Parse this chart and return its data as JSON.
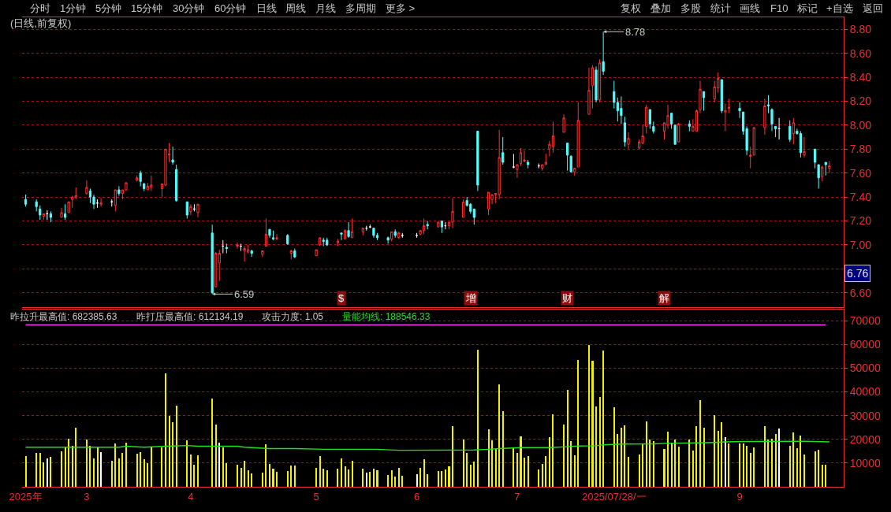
{
  "chart_data": [
    {
      "type": "other",
      "annotations": [
        "分时",
        "1分钟",
        "5分钟",
        "15分钟",
        "30分钟",
        "60分钟",
        "日线",
        "周线",
        "月线",
        "多周期",
        "更多 >"
      ]
    },
    {
      "type": "other",
      "annotations": [
        "复权",
        "叠加",
        "多股",
        "统计",
        "画线",
        "F10",
        "标记",
        "+自选",
        "返回"
      ]
    },
    {
      "type": "candlestick",
      "title": "(日线,前复权)",
      "x": [
        "2025-02-14",
        "2025-02-17",
        "2025-02-18",
        "2025-02-19",
        "2025-02-20",
        "2025-02-21",
        "2025-02-24",
        "2025-02-25",
        "2025-02-26",
        "2025-02-27",
        "2025-02-28",
        "2025-03-03",
        "2025-03-04",
        "2025-03-05",
        "2025-03-06",
        "2025-03-07",
        "2025-03-10",
        "2025-03-11",
        "2025-03-12",
        "2025-03-13",
        "2025-03-14",
        "2025-03-17",
        "2025-03-18",
        "2025-03-19",
        "2025-03-20",
        "2025-03-21",
        "2025-03-24",
        "2025-03-25",
        "2025-03-26",
        "2025-03-27",
        "2025-03-28",
        "2025-03-31",
        "2025-04-01",
        "2025-04-02",
        "2025-04-03",
        "2025-04-07",
        "2025-04-08",
        "2025-04-09",
        "2025-04-10",
        "2025-04-11",
        "2025-04-14",
        "2025-04-15",
        "2025-04-16",
        "2025-04-17",
        "2025-04-18",
        "2025-04-21",
        "2025-04-22",
        "2025-04-23",
        "2025-04-24",
        "2025-04-25",
        "2025-04-28",
        "2025-04-29",
        "2025-04-30",
        "2025-05-06",
        "2025-05-07",
        "2025-05-08",
        "2025-05-09",
        "2025-05-12",
        "2025-05-13",
        "2025-05-14",
        "2025-05-15",
        "2025-05-16",
        "2025-05-19",
        "2025-05-20",
        "2025-05-21",
        "2025-05-22",
        "2025-05-23",
        "2025-05-26",
        "2025-05-27",
        "2025-05-28",
        "2025-05-29",
        "2025-05-30",
        "2025-06-03",
        "2025-06-04",
        "2025-06-05",
        "2025-06-06",
        "2025-06-09",
        "2025-06-10",
        "2025-06-11",
        "2025-06-12",
        "2025-06-13",
        "2025-06-16",
        "2025-06-17",
        "2025-06-18",
        "2025-06-19",
        "2025-06-20",
        "2025-06-23",
        "2025-06-24",
        "2025-06-25",
        "2025-06-26",
        "2025-06-27",
        "2025-06-30",
        "2025-07-01",
        "2025-07-02",
        "2025-07-03",
        "2025-07-04",
        "2025-07-07",
        "2025-07-08",
        "2025-07-09",
        "2025-07-10",
        "2025-07-11",
        "2025-07-14",
        "2025-07-15",
        "2025-07-16",
        "2025-07-17",
        "2025-07-18",
        "2025-07-21",
        "2025-07-22",
        "2025-07-23",
        "2025-07-24",
        "2025-07-25",
        "2025-07-28",
        "2025-07-29",
        "2025-07-30",
        "2025-07-31",
        "2025-08-01",
        "2025-08-04",
        "2025-08-05",
        "2025-08-06",
        "2025-08-07",
        "2025-08-08",
        "2025-08-11",
        "2025-08-12",
        "2025-08-13",
        "2025-08-14",
        "2025-08-15",
        "2025-08-18",
        "2025-08-19",
        "2025-08-20",
        "2025-08-21",
        "2025-08-22",
        "2025-08-25",
        "2025-08-26",
        "2025-08-27",
        "2025-08-28",
        "2025-08-29",
        "2025-09-01",
        "2025-09-02",
        "2025-09-03",
        "2025-09-04",
        "2025-09-05",
        "2025-09-08",
        "2025-09-09",
        "2025-09-10",
        "2025-09-11",
        "2025-09-12",
        "2025-09-15",
        "2025-09-16",
        "2025-09-17",
        "2025-09-18",
        "2025-09-19",
        "2025-09-22",
        "2025-09-23",
        "2025-09-24",
        "2025-09-25",
        "2025-09-26"
      ],
      "ohlc": [
        [
          7.38,
          7.42,
          7.32,
          7.34
        ],
        [
          7.36,
          7.38,
          7.28,
          7.32
        ],
        [
          7.3,
          7.33,
          7.21,
          7.25
        ],
        [
          7.24,
          7.26,
          7.21,
          7.26
        ],
        [
          7.26,
          7.29,
          7.21,
          7.26
        ],
        [
          7.26,
          7.28,
          7.19,
          7.23
        ],
        [
          7.23,
          7.31,
          7.23,
          7.27
        ],
        [
          7.26,
          7.34,
          7.21,
          7.23
        ],
        [
          7.27,
          7.36,
          7.27,
          7.36
        ],
        [
          7.38,
          7.41,
          7.31,
          7.4
        ],
        [
          7.4,
          7.48,
          7.38,
          7.41
        ],
        [
          7.43,
          7.54,
          7.42,
          7.48
        ],
        [
          7.45,
          7.47,
          7.35,
          7.4
        ],
        [
          7.4,
          7.42,
          7.3,
          7.34
        ],
        [
          7.35,
          7.38,
          7.31,
          7.35
        ],
        [
          7.34,
          7.39,
          7.32,
          7.35
        ],
        [
          7.36,
          7.38,
          7.32,
          7.36
        ],
        [
          7.33,
          7.46,
          7.28,
          7.46
        ],
        [
          7.46,
          7.49,
          7.41,
          7.43
        ],
        [
          7.43,
          7.46,
          7.38,
          7.46
        ],
        [
          7.46,
          7.52,
          7.45,
          7.52
        ],
        [
          7.54,
          7.58,
          7.53,
          7.56
        ],
        [
          7.6,
          7.62,
          7.49,
          7.53
        ],
        [
          7.51,
          7.52,
          7.45,
          7.47
        ],
        [
          7.46,
          7.52,
          7.46,
          7.49
        ],
        [
          7.48,
          7.58,
          7.45,
          7.5
        ],
        [
          7.47,
          7.51,
          7.4,
          7.51
        ],
        [
          7.5,
          7.8,
          7.49,
          7.8
        ],
        [
          7.75,
          7.85,
          7.69,
          7.76
        ],
        [
          7.71,
          7.82,
          7.67,
          7.69
        ],
        [
          7.63,
          7.67,
          7.36,
          7.37
        ],
        [
          7.36,
          7.36,
          7.22,
          7.25
        ],
        [
          7.28,
          7.34,
          7.25,
          7.32
        ],
        [
          7.3,
          7.34,
          7.28,
          7.3
        ],
        [
          7.27,
          7.34,
          7.23,
          7.34
        ],
        [
          7.1,
          7.17,
          6.59,
          6.6
        ],
        [
          6.65,
          6.94,
          6.65,
          6.93
        ],
        [
          6.85,
          6.96,
          6.7,
          6.93
        ],
        [
          6.99,
          7.04,
          6.93,
          6.99
        ],
        [
          6.98,
          7.01,
          6.93,
          6.97
        ],
        [
          6.99,
          7.02,
          6.97,
          7.0
        ],
        [
          6.99,
          7.01,
          6.95,
          6.99
        ],
        [
          6.95,
          6.99,
          6.86,
          6.97
        ],
        [
          6.94,
          7.0,
          6.93,
          6.96
        ],
        [
          6.95,
          6.96,
          6.9,
          6.93
        ],
        [
          6.92,
          6.95,
          6.9,
          6.95
        ],
        [
          6.99,
          7.22,
          6.99,
          7.09
        ],
        [
          7.13,
          7.13,
          7.06,
          7.08
        ],
        [
          7.06,
          7.12,
          7.04,
          7.05
        ],
        [
          7.05,
          7.09,
          7.04,
          7.06
        ],
        [
          7.08,
          7.09,
          7.0,
          7.01
        ],
        [
          6.93,
          6.96,
          6.88,
          6.95
        ],
        [
          6.95,
          6.97,
          6.89,
          6.9
        ],
        [
          6.91,
          6.96,
          6.91,
          6.96
        ],
        [
          7.0,
          7.06,
          6.99,
          7.06
        ],
        [
          7.04,
          7.06,
          6.99,
          7.03
        ],
        [
          7.04,
          7.06,
          6.99,
          7.0
        ],
        [
          7.02,
          7.05,
          6.99,
          7.03
        ],
        [
          7.1,
          7.1,
          7.04,
          7.09
        ],
        [
          7.05,
          7.13,
          7.05,
          7.12
        ],
        [
          7.12,
          7.19,
          7.06,
          7.07
        ],
        [
          7.06,
          7.22,
          7.06,
          7.11
        ],
        [
          7.11,
          7.14,
          7.08,
          7.14
        ],
        [
          7.14,
          7.16,
          7.12,
          7.14
        ],
        [
          7.15,
          7.17,
          7.14,
          7.15
        ],
        [
          7.14,
          7.14,
          7.06,
          7.08
        ],
        [
          7.08,
          7.1,
          7.04,
          7.06
        ],
        [
          7.06,
          7.07,
          7.01,
          7.04
        ],
        [
          7.05,
          7.11,
          7.03,
          7.11
        ],
        [
          7.11,
          7.13,
          7.06,
          7.08
        ],
        [
          7.06,
          7.11,
          7.05,
          7.1
        ],
        [
          7.08,
          7.1,
          7.06,
          7.08
        ],
        [
          7.08,
          7.1,
          7.06,
          7.08
        ],
        [
          7.09,
          7.12,
          7.08,
          7.12
        ],
        [
          7.12,
          7.22,
          7.09,
          7.16
        ],
        [
          7.17,
          7.2,
          7.13,
          7.16
        ],
        [
          7.15,
          7.19,
          7.15,
          7.19
        ],
        [
          7.2,
          7.2,
          7.1,
          7.15
        ],
        [
          7.16,
          7.19,
          7.13,
          7.16
        ],
        [
          7.16,
          7.19,
          7.13,
          7.19
        ],
        [
          7.19,
          7.39,
          7.14,
          7.28
        ],
        [
          7.23,
          7.38,
          7.23,
          7.36
        ],
        [
          7.37,
          7.4,
          7.32,
          7.33
        ],
        [
          7.34,
          7.35,
          7.26,
          7.28
        ],
        [
          7.3,
          7.3,
          7.17,
          7.23
        ],
        [
          7.95,
          7.95,
          7.45,
          7.5
        ],
        [
          7.3,
          7.44,
          7.25,
          7.44
        ],
        [
          7.38,
          7.42,
          7.34,
          7.42
        ],
        [
          7.42,
          7.43,
          7.35,
          7.43
        ],
        [
          7.42,
          7.96,
          7.38,
          7.73
        ],
        [
          7.77,
          7.9,
          7.67,
          7.69
        ],
        [
          7.65,
          7.76,
          7.64,
          7.65
        ],
        [
          7.63,
          7.67,
          7.56,
          7.67
        ],
        [
          7.68,
          7.81,
          7.66,
          7.77
        ],
        [
          7.7,
          7.79,
          7.69,
          7.71
        ],
        [
          7.69,
          7.71,
          7.64,
          7.67
        ],
        [
          7.66,
          7.68,
          7.64,
          7.66
        ],
        [
          7.64,
          7.67,
          7.62,
          7.67
        ],
        [
          7.67,
          7.76,
          7.67,
          7.69
        ],
        [
          7.8,
          7.87,
          7.74,
          7.84
        ],
        [
          7.82,
          8.03,
          7.77,
          7.91
        ],
        [
          7.94,
          8.09,
          7.94,
          8.06
        ],
        [
          7.85,
          7.85,
          7.62,
          7.75
        ],
        [
          7.74,
          7.75,
          7.61,
          7.61
        ],
        [
          7.61,
          7.64,
          7.58,
          7.64
        ],
        [
          7.65,
          8.19,
          7.65,
          8.04
        ],
        [
          8.09,
          8.48,
          8.09,
          8.29
        ],
        [
          8.33,
          8.5,
          8.14,
          8.48
        ],
        [
          8.46,
          8.49,
          8.19,
          8.21
        ],
        [
          8.21,
          8.55,
          8.19,
          8.52
        ],
        [
          8.53,
          8.78,
          8.42,
          8.45
        ],
        [
          8.28,
          8.37,
          8.14,
          8.19
        ],
        [
          8.19,
          8.23,
          8.03,
          8.12
        ],
        [
          8.14,
          8.24,
          8.01,
          8.08
        ],
        [
          8.02,
          8.07,
          7.82,
          7.86
        ],
        [
          7.84,
          7.94,
          7.8,
          7.89
        ],
        [
          7.81,
          7.88,
          7.8,
          7.86
        ],
        [
          7.85,
          8.0,
          7.84,
          7.91
        ],
        [
          7.99,
          8.17,
          7.93,
          8.15
        ],
        [
          8.13,
          8.13,
          7.97,
          8.01
        ],
        [
          7.99,
          8.03,
          7.93,
          7.95
        ],
        [
          7.95,
          8.02,
          7.88,
          8.02
        ],
        [
          8.0,
          8.17,
          7.97,
          8.08
        ],
        [
          8.1,
          8.1,
          7.97,
          8.01
        ],
        [
          8.0,
          8.0,
          7.84,
          7.84
        ],
        [
          7.86,
          8.02,
          7.86,
          8.01
        ],
        [
          8.01,
          8.04,
          7.95,
          7.99
        ],
        [
          7.95,
          8.05,
          7.95,
          7.99
        ],
        [
          7.95,
          8.13,
          7.95,
          8.12
        ],
        [
          8.13,
          8.37,
          8.1,
          8.3
        ],
        [
          8.28,
          8.28,
          8.12,
          8.23
        ],
        [
          8.22,
          8.37,
          8.19,
          8.32
        ],
        [
          8.31,
          8.44,
          8.27,
          8.39
        ],
        [
          8.38,
          8.38,
          8.1,
          8.12
        ],
        [
          8.11,
          8.18,
          7.95,
          8.12
        ],
        [
          8.14,
          8.22,
          8.1,
          8.15
        ],
        [
          8.14,
          8.19,
          8.06,
          8.12
        ],
        [
          8.11,
          8.11,
          7.92,
          7.95
        ],
        [
          7.97,
          7.99,
          7.75,
          7.79
        ],
        [
          7.74,
          7.82,
          7.64,
          7.75
        ],
        [
          7.75,
          7.98,
          7.75,
          7.98
        ],
        [
          7.98,
          8.22,
          7.92,
          8.16
        ],
        [
          8.17,
          8.25,
          8.1,
          8.16
        ],
        [
          8.13,
          8.14,
          7.95,
          8.01
        ],
        [
          7.99,
          7.99,
          7.9,
          7.97
        ],
        [
          7.97,
          8.06,
          7.88,
          7.97
        ],
        [
          7.99,
          8.04,
          7.86,
          7.88
        ],
        [
          7.93,
          8.06,
          7.84,
          8.02
        ],
        [
          7.95,
          7.97,
          7.92,
          7.93
        ],
        [
          7.93,
          7.95,
          7.73,
          7.77
        ],
        [
          7.75,
          7.9,
          7.73,
          7.78
        ],
        [
          7.8,
          7.8,
          7.64,
          7.69
        ],
        [
          7.67,
          7.67,
          7.47,
          7.56
        ],
        [
          7.57,
          7.66,
          7.53,
          7.65
        ],
        [
          7.69,
          7.69,
          7.58,
          7.67
        ],
        [
          7.64,
          7.7,
          7.6,
          7.66
        ]
      ],
      "colors": [
        "#54fcfc",
        "#54fcfc",
        "#54fcfc",
        "#ff3232",
        "#ffffff",
        "#54fcfc",
        "#ff3232",
        "#54fcfc",
        "#ff3232",
        "#ff3232",
        "#ff3232",
        "#ff3232",
        "#54fcfc",
        "#54fcfc",
        "#ffffff",
        "#ff3232",
        "#ffffff",
        "#ff3232",
        "#54fcfc",
        "#ff3232",
        "#ff3232",
        "#ff3232",
        "#54fcfc",
        "#54fcfc",
        "#ff3232",
        "#ff3232",
        "#ff3232",
        "#ff3232",
        "#ff3232",
        "#54fcfc",
        "#54fcfc",
        "#54fcfc",
        "#ff3232",
        "#ffffff",
        "#ff3232",
        "#54fcfc",
        "#ff3232",
        "#ff3232",
        "#ffffff",
        "#54fcfc",
        "#ff3232",
        "#ffffff",
        "#ff3232",
        "#ff3232",
        "#54fcfc",
        "#ff3232",
        "#ff3232",
        "#54fcfc",
        "#54fcfc",
        "#ff3232",
        "#54fcfc",
        "#ff3232",
        "#54fcfc",
        "#ff3232",
        "#ff3232",
        "#54fcfc",
        "#54fcfc",
        "#ff3232",
        "#54fcfc",
        "#ff3232",
        "#54fcfc",
        "#ff3232",
        "#ff3232",
        "#ffffff",
        "#ffffff",
        "#54fcfc",
        "#54fcfc",
        "#54fcfc",
        "#ff3232",
        "#54fcfc",
        "#ff3232",
        "#ffffff",
        "#ffffff",
        "#ff3232",
        "#ff3232",
        "#54fcfc",
        "#ff3232",
        "#54fcfc",
        "#ffffff",
        "#ff3232",
        "#ff3232",
        "#ff3232",
        "#54fcfc",
        "#54fcfc",
        "#54fcfc",
        "#54fcfc",
        "#ff3232",
        "#ff3232",
        "#ff3232",
        "#ff3232",
        "#54fcfc",
        "#ffffff",
        "#ff3232",
        "#ff3232",
        "#ff3232",
        "#54fcfc",
        "#ffffff",
        "#ff3232",
        "#ff3232",
        "#ff3232",
        "#ff3232",
        "#ff3232",
        "#54fcfc",
        "#54fcfc",
        "#ff3232",
        "#ff3232",
        "#ff3232",
        "#ff3232",
        "#54fcfc",
        "#ff3232",
        "#54fcfc",
        "#54fcfc",
        "#54fcfc",
        "#54fcfc",
        "#54fcfc",
        "#ff3232",
        "#ff3232",
        "#ff3232",
        "#ff3232",
        "#54fcfc",
        "#54fcfc",
        "#ff3232",
        "#ff3232",
        "#54fcfc",
        "#54fcfc",
        "#ff3232",
        "#54fcfc",
        "#ff3232",
        "#ff3232",
        "#ff3232",
        "#54fcfc",
        "#ff3232",
        "#ff3232",
        "#54fcfc",
        "#ff3232",
        "#ff3232",
        "#54fcfc",
        "#54fcfc",
        "#54fcfc",
        "#ff3232",
        "#ff3232",
        "#ff3232",
        "#54fcfc",
        "#54fcfc",
        "#54fcfc",
        "#ffffff",
        "#54fcfc",
        "#ff3232",
        "#54fcfc",
        "#54fcfc",
        "#ff3232",
        "#54fcfc",
        "#54fcfc",
        "#ff3232",
        "#54fcfc",
        "#ff3232"
      ],
      "xlim": [
        "2025-02-13",
        "2025-09-30"
      ],
      "ylim": [
        6.48,
        8.9
      ],
      "yticks": [
        {
          "value": 6.6,
          "label": "6.60"
        },
        {
          "value": 6.8,
          "label": null
        },
        {
          "value": 7.0,
          "label": "7.00"
        },
        {
          "value": 7.2,
          "label": "7.20"
        },
        {
          "value": 7.4,
          "label": "7.40"
        },
        {
          "value": 7.6,
          "label": "7.60"
        },
        {
          "value": 7.8,
          "label": "7.80"
        },
        {
          "value": 8.0,
          "label": "8.00"
        },
        {
          "value": 8.2,
          "label": "8.20"
        },
        {
          "value": 8.4,
          "label": "8.40"
        },
        {
          "value": 8.6,
          "label": "8.60"
        },
        {
          "value": 8.8,
          "label": "8.80"
        }
      ],
      "grid": "y",
      "tick_labels": "y",
      "annotations": [
        {
          "text": "8.78",
          "x": "2025-07-25",
          "y": 8.78
        },
        {
          "text": "6.59",
          "x": "2025-04-07",
          "y": 6.59
        },
        {
          "text": "$",
          "x": "2025-05-13"
        },
        {
          "text": "增",
          "x": "2025-06-18"
        },
        {
          "text": "财",
          "x": "2025-07-15"
        },
        {
          "text": "解",
          "x": "2025-08-11"
        },
        {
          "text": "6.76",
          "y": 6.76
        }
      ]
    },
    {
      "type": "bar",
      "x": [
        "2025-02-14",
        "2025-02-17",
        "2025-02-18",
        "2025-02-19",
        "2025-02-20",
        "2025-02-21",
        "2025-02-24",
        "2025-02-25",
        "2025-02-26",
        "2025-02-27",
        "2025-02-28",
        "2025-03-03",
        "2025-03-04",
        "2025-03-05",
        "2025-03-06",
        "2025-03-07",
        "2025-03-10",
        "2025-03-11",
        "2025-03-12",
        "2025-03-13",
        "2025-03-14",
        "2025-03-17",
        "2025-03-18",
        "2025-03-19",
        "2025-03-20",
        "2025-03-21",
        "2025-03-24",
        "2025-03-25",
        "2025-03-26",
        "2025-03-27",
        "2025-03-28",
        "2025-03-31",
        "2025-04-01",
        "2025-04-02",
        "2025-04-03",
        "2025-04-07",
        "2025-04-08",
        "2025-04-09",
        "2025-04-10",
        "2025-04-11",
        "2025-04-14",
        "2025-04-15",
        "2025-04-16",
        "2025-04-17",
        "2025-04-18",
        "2025-04-21",
        "2025-04-22",
        "2025-04-23",
        "2025-04-24",
        "2025-04-25",
        "2025-04-28",
        "2025-04-29",
        "2025-04-30",
        "2025-05-06",
        "2025-05-07",
        "2025-05-08",
        "2025-05-09",
        "2025-05-12",
        "2025-05-13",
        "2025-05-14",
        "2025-05-15",
        "2025-05-16",
        "2025-05-19",
        "2025-05-20",
        "2025-05-21",
        "2025-05-22",
        "2025-05-23",
        "2025-05-26",
        "2025-05-27",
        "2025-05-28",
        "2025-05-29",
        "2025-05-30",
        "2025-06-03",
        "2025-06-04",
        "2025-06-05",
        "2025-06-06",
        "2025-06-09",
        "2025-06-10",
        "2025-06-11",
        "2025-06-12",
        "2025-06-13",
        "2025-06-16",
        "2025-06-17",
        "2025-06-18",
        "2025-06-19",
        "2025-06-20",
        "2025-06-23",
        "2025-06-24",
        "2025-06-25",
        "2025-06-26",
        "2025-06-27",
        "2025-06-30",
        "2025-07-01",
        "2025-07-02",
        "2025-07-03",
        "2025-07-04",
        "2025-07-07",
        "2025-07-08",
        "2025-07-09",
        "2025-07-10",
        "2025-07-11",
        "2025-07-14",
        "2025-07-15",
        "2025-07-16",
        "2025-07-17",
        "2025-07-18",
        "2025-07-21",
        "2025-07-22",
        "2025-07-23",
        "2025-07-24",
        "2025-07-25",
        "2025-07-28",
        "2025-07-29",
        "2025-07-30",
        "2025-07-31",
        "2025-08-01",
        "2025-08-04",
        "2025-08-05",
        "2025-08-06",
        "2025-08-07",
        "2025-08-08",
        "2025-08-11",
        "2025-08-12",
        "2025-08-13",
        "2025-08-14",
        "2025-08-15",
        "2025-08-18",
        "2025-08-19",
        "2025-08-20",
        "2025-08-21",
        "2025-08-22",
        "2025-08-25",
        "2025-08-26",
        "2025-08-27",
        "2025-08-28",
        "2025-08-29",
        "2025-09-01",
        "2025-09-02",
        "2025-09-03",
        "2025-09-04",
        "2025-09-05",
        "2025-09-08",
        "2025-09-09",
        "2025-09-10",
        "2025-09-11",
        "2025-09-12",
        "2025-09-15",
        "2025-09-16",
        "2025-09-17",
        "2025-09-18",
        "2025-09-19",
        "2025-09-22",
        "2025-09-23",
        "2025-09-24",
        "2025-09-25"
      ],
      "series": [
        {
          "type": "bar",
          "values": [
            12900,
            14200,
            14200,
            10300,
            11900,
            12600,
            14800,
            16600,
            20400,
            17100,
            24900,
            20000,
            17400,
            11900,
            16600,
            14500,
            10900,
            18400,
            11900,
            14200,
            18700,
            13900,
            14600,
            11600,
            10000,
            16600,
            16600,
            47800,
            29900,
            27300,
            34200,
            19700,
            13500,
            9400,
            13300,
            37100,
            26300,
            18700,
            16500,
            10000,
            9400,
            7900,
            10900,
            7000,
            5800,
            6000,
            17800,
            9700,
            7700,
            6400,
            6800,
            9000,
            9000,
            8100,
            12900,
            7700,
            7000,
            7700,
            12000,
            8700,
            7400,
            10900,
            7700,
            6000,
            6400,
            7700,
            7000,
            5100,
            7000,
            4200,
            8100,
            4700,
            5300,
            7900,
            11600,
            5300,
            6800,
            6800,
            7400,
            8700,
            25400,
            20000,
            14200,
            9400,
            10600,
            57900,
            24100,
            19500,
            16000,
            43200,
            31800,
            16500,
            14200,
            21300,
            12200,
            12900,
            7400,
            9700,
            12900,
            20800,
            30500,
            26300,
            40900,
            19100,
            13300,
            53400,
            59900,
            53000,
            33800,
            37700,
            57300,
            33400,
            22100,
            25000,
            26000,
            12600,
            13500,
            18100,
            27600,
            19900,
            19200,
            15900,
            23400,
            18300,
            19900,
            16800,
            19800,
            15200,
            25600,
            36400,
            25000,
            30100,
            23700,
            27300,
            21000,
            18100,
            18100,
            18100,
            17200,
            14200,
            16500,
            25400,
            19800,
            20200,
            22100,
            24700,
            17200,
            23000,
            16200,
            21700,
            13500,
            14800,
            15500,
            9400,
            9400
          ],
          "colors": [
            "#f0f000",
            "#f0f000",
            "#f0f000",
            "#f0f000",
            "#ffffff",
            "#f0f000",
            "#f0f000",
            "#f0f000",
            "#f0f000",
            "#f0f000",
            "#f0f000",
            "#f0f000",
            "#f0f000",
            "#f0f000",
            "#f0f000",
            "#ffffff",
            "#f0f000",
            "#f0f000",
            "#f0f000",
            "#f0f000",
            "#f0f000",
            "#f0f000",
            "#f0f000",
            "#f0f000",
            "#f0f000",
            "#f0f000",
            "#f0f000",
            "#f0f000",
            "#f0f000",
            "#f0f000",
            "#f0f000",
            "#f0f000",
            "#f0f000",
            "#f0f000",
            "#f0f000",
            "#f0f000",
            "#f0f000",
            "#ffffff",
            "#f0f000",
            "#f0f000",
            "#f0f000",
            "#f0f000",
            "#f0f000",
            "#f0f000",
            "#f0f000",
            "#f0f000",
            "#f0f000",
            "#f0f000",
            "#f0f000",
            "#f0f000",
            "#f0f000",
            "#f0f000",
            "#f0f000",
            "#f0f000",
            "#f0f000",
            "#f0f000",
            "#f0f000",
            "#f0f000",
            "#f0f000",
            "#f0f000",
            "#f0f000",
            "#f0f000",
            "#f0f000",
            "#ffffff",
            "#f0f000",
            "#f0f000",
            "#f0f000",
            "#f0f000",
            "#f0f000",
            "#f0f000",
            "#f0f000",
            "#f0f000",
            "#ffffff",
            "#f0f000",
            "#f0f000",
            "#f0f000",
            "#f0f000",
            "#f0f000",
            "#f0f000",
            "#f0f000",
            "#f0f000",
            "#f0f000",
            "#f0f000",
            "#f0f000",
            "#f0f000",
            "#f0f000",
            "#f0f000",
            "#f0f000",
            "#f0f000",
            "#f0f000",
            "#f0f000",
            "#f0f000",
            "#f0f000",
            "#f0f000",
            "#f0f000",
            "#f0f000",
            "#f0f000",
            "#f0f000",
            "#f0f000",
            "#f0f000",
            "#f0f000",
            "#f0f000",
            "#f0f000",
            "#f0f000",
            "#f0f000",
            "#f0f000",
            "#f0f000",
            "#f0f000",
            "#f0f000",
            "#f0f000",
            "#f0f000",
            "#f0f000",
            "#f0f000",
            "#f0f000",
            "#f0f000",
            "#f0f000",
            "#f0f000",
            "#f0f000",
            "#f0f000",
            "#f0f000",
            "#f0f000",
            "#f0f000",
            "#f0f000",
            "#f0f000",
            "#f0f000",
            "#f0f000",
            "#f0f000",
            "#f0f000",
            "#f0f000",
            "#f0f000",
            "#f0f000",
            "#f0f000",
            "#f0f000",
            "#f0f000",
            "#ffffff",
            "#f0f000",
            "#f0f000",
            "#f0f000",
            "#f0f000",
            "#f0f000",
            "#f0f000",
            "#f0f000",
            "#f0f000",
            "#f0f000",
            "#f0f000",
            "#ffffff",
            "#f0f000",
            "#f0f000",
            "#f0f000",
            "#f0f000",
            "#f0f000",
            "#f0f000",
            "#f0f000",
            "#f0f000",
            "#f0f000"
          ]
        },
        {
          "type": "line",
          "name": "量能均线: 188546.33",
          "color": "#20e020",
          "x": [
            "2025-02-14",
            "2025-03-12",
            "2025-03-14",
            "2025-03-19",
            "2025-03-25",
            "2025-03-31",
            "2025-04-03",
            "2025-04-14",
            "2025-04-16",
            "2025-04-18",
            "2025-04-23",
            "2025-04-30",
            "2025-05-08",
            "2025-05-23",
            "2025-05-29",
            "2025-06-19",
            "2025-06-23",
            "2025-06-26",
            "2025-07-02",
            "2025-07-10",
            "2025-07-14",
            "2025-07-18",
            "2025-07-23",
            "2025-07-25",
            "2025-07-30",
            "2025-08-08",
            "2025-08-13",
            "2025-08-20",
            "2025-08-25",
            "2025-08-28",
            "2025-09-02",
            "2025-09-19",
            "2025-09-24",
            "2025-09-26"
          ],
          "values": [
            16700,
            16700,
            17100,
            16700,
            17100,
            17400,
            17100,
            17100,
            16700,
            16500,
            16100,
            16100,
            15800,
            15800,
            15400,
            15500,
            15800,
            16100,
            16500,
            16500,
            16800,
            17200,
            17300,
            17700,
            18000,
            18100,
            18400,
            18500,
            18700,
            18900,
            19100,
            19200,
            19000,
            18900
          ]
        }
      ],
      "ref_lines": [
        {
          "axis": "y",
          "value": 68200,
          "color": "#ff40ff"
        }
      ],
      "annotations": [
        "昨拉升最高值: 682385.63",
        "昨打压最高值: 612134.19",
        "攻击力度: 1.05"
      ],
      "legend": "top left",
      "xlim": [
        "2025-02-13",
        "2025-09-30"
      ],
      "xticks": [
        {
          "value": "2025-02-14",
          "label": "2025年"
        },
        {
          "value": "2025-03-03",
          "label": "3"
        },
        {
          "value": "2025-04-01",
          "label": "4"
        },
        {
          "value": "2025-05-06",
          "label": "5"
        },
        {
          "value": "2025-06-03",
          "label": "6"
        },
        {
          "value": "2025-07-01",
          "label": "7"
        },
        {
          "value": "2025-07-28",
          "label": "2025/07/28/一"
        },
        {
          "value": "2025-09-01",
          "label": "9"
        }
      ],
      "ylim": [
        0,
        74700
      ],
      "yticks": [
        10000,
        20000,
        30000,
        40000,
        50000,
        60000,
        70000
      ],
      "grid": "y"
    }
  ]
}
